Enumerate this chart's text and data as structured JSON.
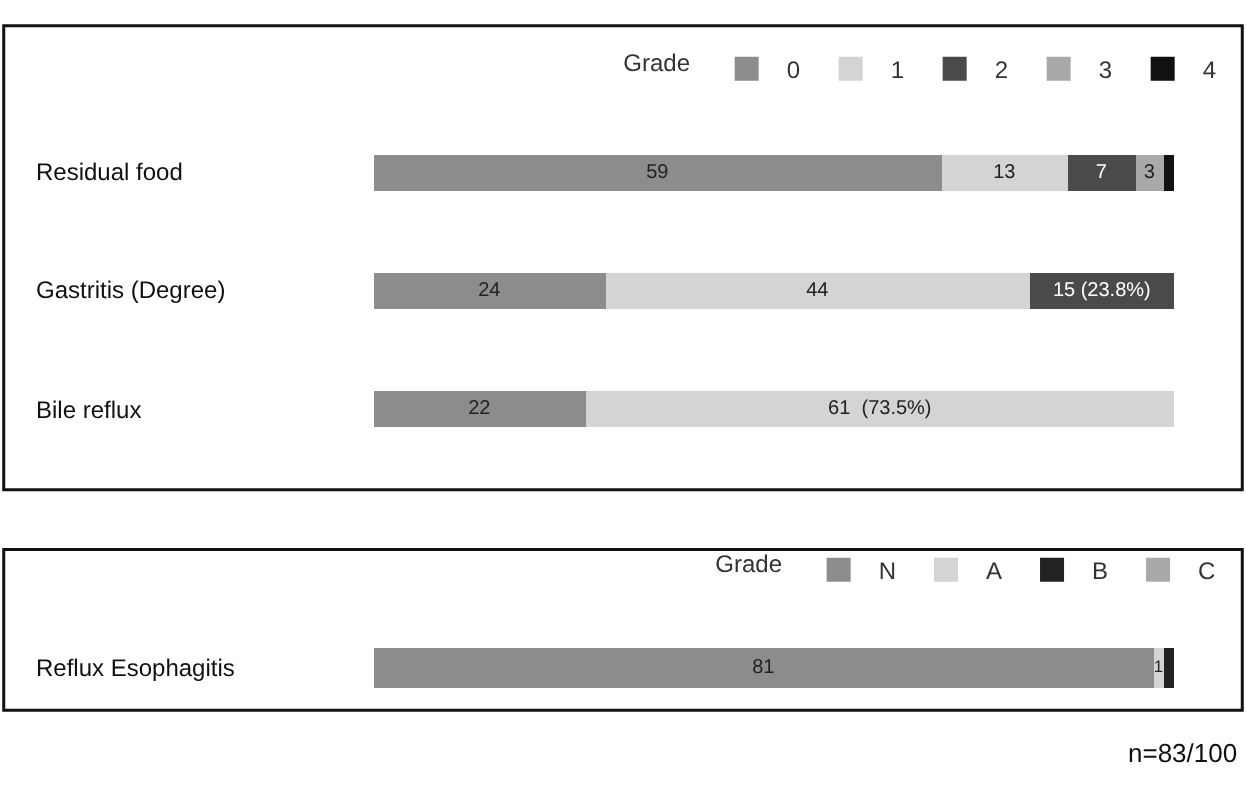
{
  "chart_data": [
    {
      "type": "bar",
      "orientation": "horizontal",
      "stacked": true,
      "legend": "top right",
      "legend_title": "Grade",
      "categories": [
        "Residual food",
        "Gastritis (Degree)",
        "Bile reflux"
      ],
      "series": [
        {
          "name": "0",
          "color": "#8c8c8c",
          "values": [
            59,
            24,
            22
          ],
          "value_labels": [
            "59",
            "24",
            "22"
          ]
        },
        {
          "name": "1",
          "color": "#d4d4d4",
          "values": [
            13,
            44,
            61
          ],
          "value_labels": [
            "13",
            "44",
            "61  (73.5%)"
          ]
        },
        {
          "name": "2",
          "color": "#4a4a4a",
          "values": [
            7,
            15,
            null
          ],
          "value_labels": [
            "7",
            "15 (23.8%)",
            null
          ]
        },
        {
          "name": "3",
          "color": "#a9a9a9",
          "values": [
            3,
            null,
            null
          ],
          "value_labels": [
            "3",
            null,
            null
          ]
        },
        {
          "name": "4",
          "color": "#111111",
          "values": [
            1,
            null,
            null
          ],
          "value_labels": [
            null,
            null,
            null
          ]
        }
      ]
    },
    {
      "type": "bar",
      "orientation": "horizontal",
      "stacked": true,
      "legend": "top right",
      "legend_title": "Grade",
      "categories": [
        "Reflux Esophagitis"
      ],
      "series": [
        {
          "name": "N",
          "color": "#8c8c8c",
          "values": [
            81
          ],
          "value_labels": [
            "81"
          ]
        },
        {
          "name": "A",
          "color": "#d4d4d4",
          "values": [
            1
          ],
          "value_labels": [
            "1"
          ]
        },
        {
          "name": "B",
          "color": "#222222",
          "values": [
            1
          ],
          "value_labels": [
            null
          ]
        },
        {
          "name": "C",
          "color": "#a9a9a9",
          "values": [
            null
          ],
          "value_labels": [
            null
          ]
        }
      ],
      "annotations": [
        "n=83/100"
      ]
    }
  ]
}
